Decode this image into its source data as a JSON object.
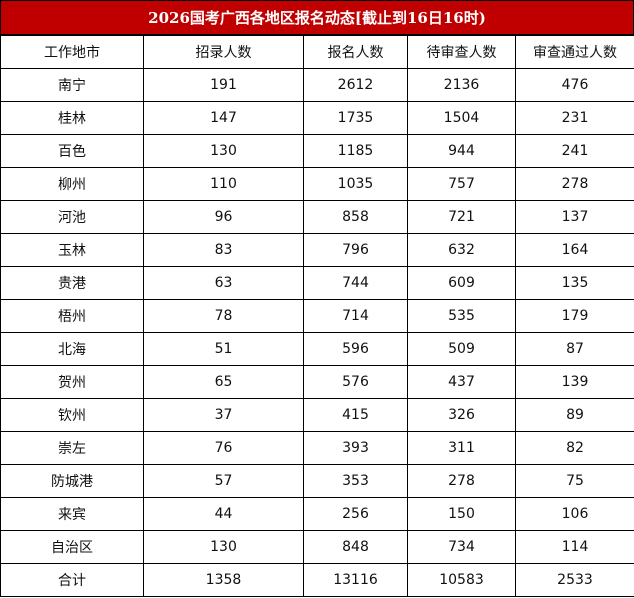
{
  "title": "2026国考广西各地区报名动态[截止到16日16时)",
  "headers": [
    "工作地市",
    "招录人数",
    "报名人数",
    "待审查人数",
    "审查通过人数"
  ],
  "rows": [
    [
      "南宁",
      "191",
      "2612",
      "2136",
      "476"
    ],
    [
      "桂林",
      "147",
      "1735",
      "1504",
      "231"
    ],
    [
      "百色",
      "130",
      "1185",
      "944",
      "241"
    ],
    [
      "柳州",
      "110",
      "1035",
      "757",
      "278"
    ],
    [
      "河池",
      "96",
      "858",
      "721",
      "137"
    ],
    [
      "玉林",
      "83",
      "796",
      "632",
      "164"
    ],
    [
      "贵港",
      "63",
      "744",
      "609",
      "135"
    ],
    [
      "梧州",
      "78",
      "714",
      "535",
      "179"
    ],
    [
      "北海",
      "51",
      "596",
      "509",
      "87"
    ],
    [
      "贺州",
      "65",
      "576",
      "437",
      "139"
    ],
    [
      "钦州",
      "37",
      "415",
      "326",
      "89"
    ],
    [
      "崇左",
      "76",
      "393",
      "311",
      "82"
    ],
    [
      "防城港",
      "57",
      "353",
      "278",
      "75"
    ],
    [
      "来宾",
      "44",
      "256",
      "150",
      "106"
    ],
    [
      "自治区",
      "130",
      "848",
      "734",
      "114"
    ],
    [
      "合计",
      "1358",
      "13116",
      "10583",
      "2533"
    ]
  ],
  "colors": {
    "title_bg": "#c00000",
    "title_text": "#ffffff"
  }
}
